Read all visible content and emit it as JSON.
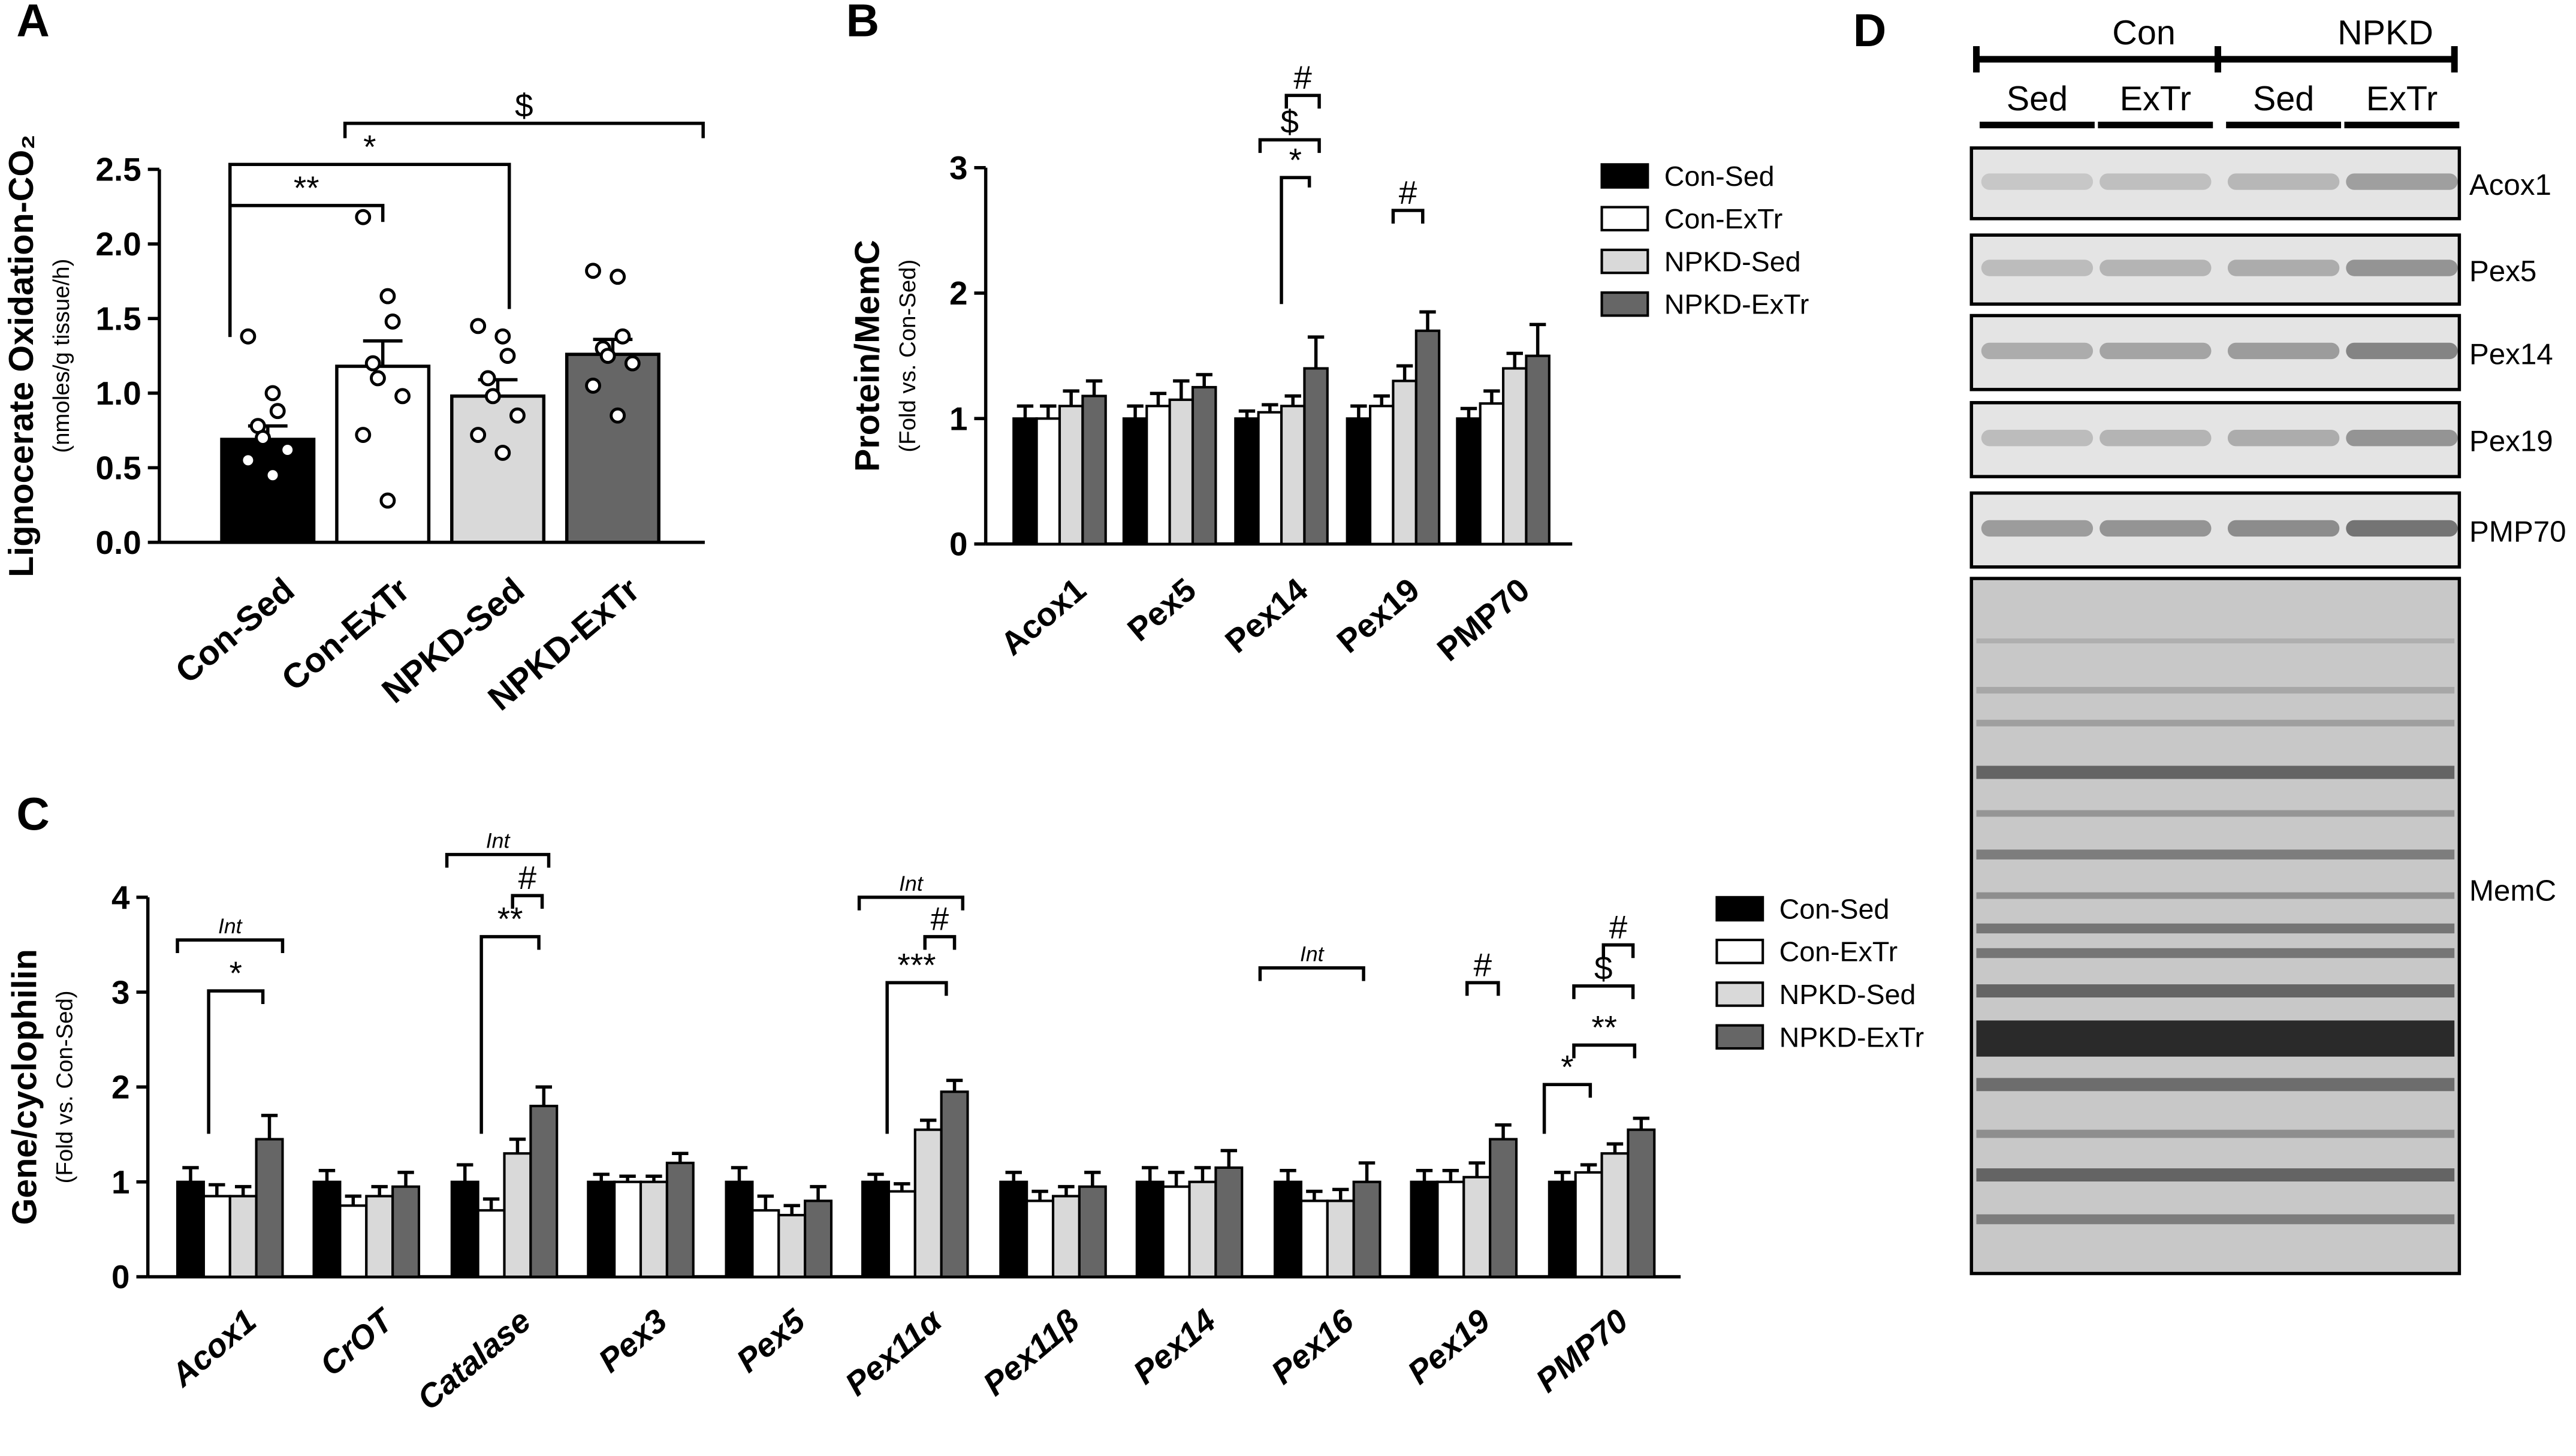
{
  "chart_data": [
    {
      "type": "bar",
      "panel": "A",
      "ylabel": "Lignocerate Oxidation-CO₂",
      "ylabel_sub": "(nmoles/g tissue/h)",
      "categories": [
        "Con-Sed",
        "Con-ExTr",
        "NPKD-Sed",
        "NPKD-ExTr"
      ],
      "colors": [
        "#000000",
        "#ffffff",
        "#d9d9d9",
        "#666666"
      ],
      "values": [
        0.69,
        1.18,
        0.98,
        1.26
      ],
      "errors": [
        0.09,
        0.17,
        0.11,
        0.1
      ],
      "dots": [
        [
          1.38,
          1.0,
          0.88,
          0.78,
          0.7,
          0.62,
          0.55,
          0.45
        ],
        [
          2.18,
          1.65,
          1.48,
          1.2,
          1.1,
          0.98,
          0.72,
          0.28
        ],
        [
          1.45,
          1.38,
          1.25,
          1.1,
          0.98,
          0.85,
          0.72,
          0.6
        ],
        [
          1.82,
          1.78,
          1.38,
          1.3,
          1.25,
          1.2,
          1.05,
          0.85
        ]
      ],
      "ylim": [
        0,
        2.5
      ],
      "yticks": [
        {
          "value": 0,
          "label": "0.0"
        },
        0.5,
        {
          "value": 1,
          "label": "1.0"
        },
        1.5,
        {
          "value": 2,
          "label": "2.0"
        },
        2.5
      ],
      "annotations": [
        "**",
        "*",
        "$"
      ]
    },
    {
      "type": "grouped-bar",
      "panel": "B",
      "ylabel": "Protein/MemC",
      "ylabel_sub": "(Fold vs. Con-Sed)",
      "categories": [
        "Acox1",
        "Pex5",
        "Pex14",
        "Pex19",
        "PMP70"
      ],
      "series": [
        {
          "name": "Con-Sed",
          "color": "#000000",
          "values": [
            1,
            1,
            1,
            1,
            1
          ],
          "errors": [
            0.1,
            0.1,
            0.06,
            0.1,
            0.08
          ]
        },
        {
          "name": "Con-ExTr",
          "color": "#ffffff",
          "values": [
            1.0,
            1.1,
            1.05,
            1.1,
            1.12
          ],
          "errors": [
            0.1,
            0.1,
            0.06,
            0.08,
            0.1
          ]
        },
        {
          "name": "NPKD-Sed",
          "color": "#d9d9d9",
          "values": [
            1.1,
            1.15,
            1.1,
            1.3,
            1.4
          ],
          "errors": [
            0.12,
            0.15,
            0.08,
            0.12,
            0.12
          ]
        },
        {
          "name": "NPKD-ExTr",
          "color": "#666666",
          "values": [
            1.18,
            1.25,
            1.4,
            1.7,
            1.5
          ],
          "errors": [
            0.12,
            0.1,
            0.25,
            0.15,
            0.25
          ]
        }
      ],
      "ylim": [
        0,
        3
      ],
      "yticks": [
        0,
        1,
        2,
        3
      ],
      "annotations": [
        "*",
        "$",
        "#",
        "#"
      ]
    },
    {
      "type": "grouped-bar",
      "panel": "C",
      "ylabel": "Gene/cyclophilin",
      "ylabel_sub": "(Fold vs. Con-Sed)",
      "categories": [
        "Acox1",
        "CrOT",
        "Catalase",
        "Pex3",
        "Pex5",
        "Pex11α",
        "Pex11β",
        "Pex14",
        "Pex16",
        "Pex19",
        "PMP70"
      ],
      "series": [
        {
          "name": "Con-Sed",
          "color": "#000000",
          "values": [
            1,
            1,
            1,
            1,
            1,
            1,
            1,
            1,
            1,
            1,
            1
          ],
          "errors": [
            0.15,
            0.12,
            0.18,
            0.08,
            0.15,
            0.08,
            0.1,
            0.15,
            0.12,
            0.12,
            0.1
          ]
        },
        {
          "name": "Con-ExTr",
          "color": "#ffffff",
          "values": [
            0.85,
            0.75,
            0.7,
            1.0,
            0.7,
            0.9,
            0.8,
            0.95,
            0.8,
            1.0,
            1.1
          ],
          "errors": [
            0.12,
            0.1,
            0.12,
            0.06,
            0.15,
            0.08,
            0.1,
            0.15,
            0.1,
            0.12,
            0.08
          ]
        },
        {
          "name": "NPKD-Sed",
          "color": "#d9d9d9",
          "values": [
            0.85,
            0.85,
            1.3,
            1.0,
            0.65,
            1.55,
            0.85,
            1.0,
            0.8,
            1.05,
            1.3
          ],
          "errors": [
            0.1,
            0.1,
            0.15,
            0.06,
            0.1,
            0.1,
            0.1,
            0.15,
            0.12,
            0.15,
            0.1
          ]
        },
        {
          "name": "NPKD-ExTr",
          "color": "#666666",
          "values": [
            1.45,
            0.95,
            1.8,
            1.2,
            0.8,
            1.95,
            0.95,
            1.15,
            1.0,
            1.45,
            1.55
          ],
          "errors": [
            0.25,
            0.15,
            0.2,
            0.1,
            0.15,
            0.12,
            0.15,
            0.18,
            0.2,
            0.15,
            0.12
          ]
        }
      ],
      "ylim": [
        0,
        4
      ],
      "yticks": [
        0,
        1,
        2,
        3,
        4
      ],
      "annotations": [
        "Int",
        "*",
        "Int",
        "#",
        "**",
        "Int",
        "#",
        "***",
        "Int",
        "#",
        "*",
        "**",
        "$",
        "#"
      ]
    }
  ],
  "blot": {
    "panel": "D",
    "groups": [
      "Con",
      "NPKD"
    ],
    "conditions": [
      "Sed",
      "ExTr",
      "Sed",
      "ExTr"
    ],
    "bands": [
      "Acox1",
      "Pex5",
      "Pex14",
      "Pex19",
      "PMP70",
      "MemC"
    ]
  }
}
